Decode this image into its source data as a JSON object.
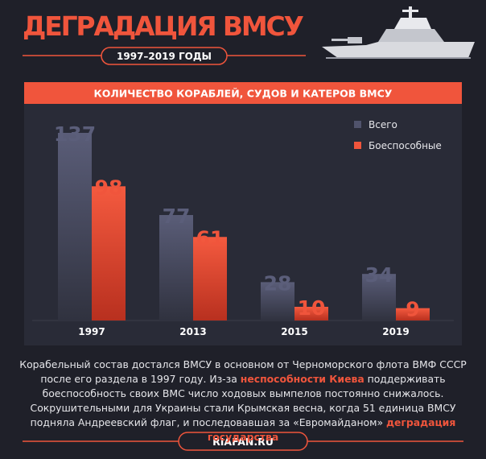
{
  "title": "ДЕГРАДАЦИЯ ВМСУ",
  "subtitle": "1997–2019 ГОДЫ",
  "chart_data": {
    "type": "bar",
    "title": "КОЛИЧЕСТВО КОРАБЛЕЙ, СУДОВ И КАТЕРОВ ВМСУ",
    "categories": [
      "1997",
      "2013",
      "2015",
      "2019"
    ],
    "series": [
      {
        "name": "Всего",
        "color": "#50536c",
        "values": [
          137,
          77,
          28,
          34
        ]
      },
      {
        "name": "Боеспособные",
        "color": "#f0553c",
        "values": [
          98,
          61,
          10,
          9
        ]
      }
    ],
    "legend": "top-right"
  },
  "text": {
    "segments": [
      {
        "text": "Корабельный состав достался ВМСУ в основном от Черноморского флота ВМФ СССР после его раздела в 1997 году. Из-за ",
        "highlight": false
      },
      {
        "text": "неспособности Киева",
        "highlight": true
      },
      {
        "text": " поддерживать боеспособность своих ВМС число ходовых вымпелов постоянно снижалось. Сокрушительными для Украины стали Крымская весна, когда 51 единица ВМСУ подняла Андреевский флаг, и последовавшая за «Евромайданом» ",
        "highlight": false
      },
      {
        "text": "деградация государства",
        "highlight": true
      }
    ]
  },
  "footer": "RIAFAN.RU"
}
